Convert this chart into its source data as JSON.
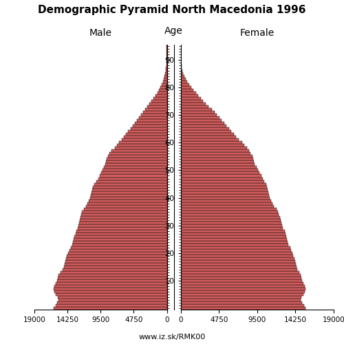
{
  "title": "Demographic Pyramid North Macedonia 1996",
  "male_label": "Male",
  "female_label": "Female",
  "age_label": "Age",
  "footer": "www.iz.sk/RMK00",
  "bar_color": "#CD5C5C",
  "edge_color": "#000000",
  "xlim": 19000,
  "xticks": [
    0,
    4750,
    9500,
    14250,
    19000
  ],
  "age_ticks": [
    10,
    20,
    30,
    40,
    50,
    60,
    70,
    80,
    90
  ],
  "male": [
    16200,
    15900,
    15700,
    15500,
    15600,
    15900,
    16100,
    16200,
    16100,
    15900,
    15700,
    15600,
    15500,
    15200,
    15000,
    14800,
    14700,
    14600,
    14500,
    14400,
    14200,
    14000,
    13800,
    13600,
    13500,
    13400,
    13300,
    13100,
    13000,
    12800,
    12700,
    12600,
    12500,
    12400,
    12300,
    12200,
    11900,
    11600,
    11400,
    11200,
    11000,
    10900,
    10800,
    10700,
    10600,
    10400,
    10100,
    9800,
    9600,
    9400,
    9200,
    9000,
    8800,
    8700,
    8600,
    8400,
    8200,
    7900,
    7500,
    7200,
    6900,
    6500,
    6200,
    5900,
    5600,
    5200,
    4900,
    4600,
    4300,
    4000,
    3700,
    3400,
    3100,
    2800,
    2500,
    2200,
    1900,
    1600,
    1300,
    1100,
    900,
    700,
    550,
    420,
    310,
    220,
    150,
    100,
    65,
    40,
    25,
    15,
    8,
    4,
    2,
    1
  ],
  "female": [
    15500,
    15300,
    15100,
    14900,
    15000,
    15200,
    15400,
    15500,
    15400,
    15200,
    15100,
    15000,
    14900,
    14700,
    14500,
    14400,
    14300,
    14200,
    14100,
    14000,
    13900,
    13700,
    13600,
    13400,
    13300,
    13200,
    13100,
    13000,
    12900,
    12700,
    12600,
    12500,
    12400,
    12300,
    12200,
    12100,
    11900,
    11600,
    11400,
    11200,
    11100,
    11000,
    10900,
    10800,
    10700,
    10600,
    10400,
    10200,
    10000,
    9800,
    9600,
    9400,
    9200,
    9100,
    9000,
    8900,
    8700,
    8500,
    8200,
    7900,
    7600,
    7200,
    6900,
    6600,
    6300,
    6000,
    5700,
    5400,
    5100,
    4800,
    4500,
    4200,
    3900,
    3500,
    3100,
    2800,
    2500,
    2200,
    1900,
    1600,
    1300,
    1050,
    820,
    630,
    470,
    340,
    240,
    160,
    100,
    62,
    38,
    22,
    12,
    6,
    3,
    1
  ]
}
